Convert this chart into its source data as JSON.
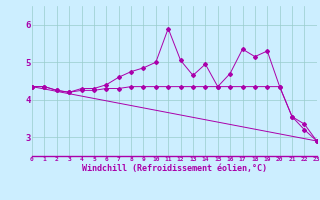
{
  "xlabel": "Windchill (Refroidissement éolien,°C)",
  "background_color": "#cceeff",
  "line_color": "#aa00aa",
  "grid_color": "#99cccc",
  "xlim": [
    0,
    23
  ],
  "ylim": [
    2.5,
    6.5
  ],
  "yticks": [
    3,
    4,
    5,
    6
  ],
  "xticks": [
    0,
    1,
    2,
    3,
    4,
    5,
    6,
    7,
    8,
    9,
    10,
    11,
    12,
    13,
    14,
    15,
    16,
    17,
    18,
    19,
    20,
    21,
    22,
    23
  ],
  "series": [
    {
      "x": [
        0,
        1,
        2,
        3,
        4,
        5,
        6,
        7,
        8,
        9,
        10,
        11,
        12,
        13,
        14,
        15,
        16,
        17,
        18,
        19,
        20,
        21,
        22,
        23
      ],
      "y": [
        4.35,
        4.35,
        4.25,
        4.2,
        4.25,
        4.25,
        4.3,
        4.3,
        4.35,
        4.35,
        4.35,
        4.35,
        4.35,
        4.35,
        4.35,
        4.35,
        4.35,
        4.35,
        4.35,
        4.35,
        4.35,
        3.55,
        3.35,
        2.9
      ]
    },
    {
      "x": [
        0,
        1,
        2,
        3,
        4,
        5,
        6,
        7,
        8,
        9,
        10,
        11,
        12,
        13,
        14,
        15,
        16,
        17,
        18,
        19,
        20,
        21,
        22,
        23
      ],
      "y": [
        4.35,
        4.35,
        4.25,
        4.2,
        4.3,
        4.3,
        4.4,
        4.6,
        4.75,
        4.85,
        5.0,
        5.9,
        5.05,
        4.65,
        4.95,
        4.35,
        4.7,
        5.35,
        5.15,
        5.3,
        4.35,
        3.55,
        3.2,
        2.9
      ]
    },
    {
      "x": [
        0,
        23
      ],
      "y": [
        4.35,
        2.9
      ]
    }
  ]
}
